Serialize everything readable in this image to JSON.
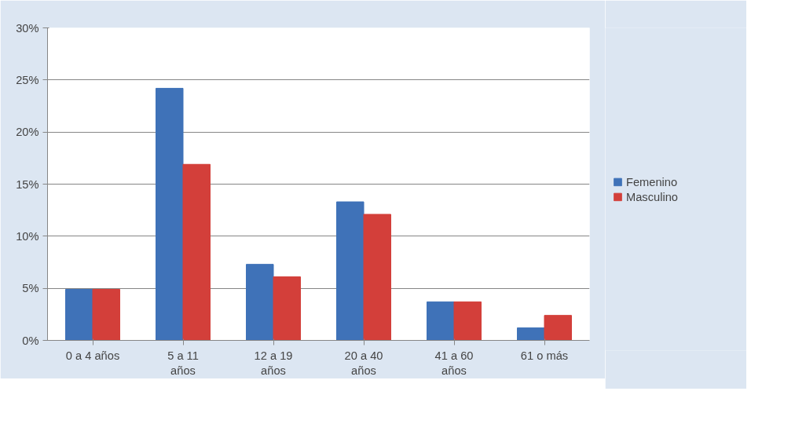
{
  "chart_data": {
    "type": "bar",
    "categories": [
      "0 a 4 años",
      "5 a 11 años",
      "12 a 19 años",
      "20 a 40 años",
      "41 a 60 años",
      "61 o más"
    ],
    "series": [
      {
        "name": "Femenino",
        "color": "#3f72b8",
        "values": [
          4.9,
          24.2,
          7.3,
          13.3,
          3.7,
          1.2
        ]
      },
      {
        "name": "Masculino",
        "color": "#d33f3a",
        "values": [
          4.9,
          16.9,
          6.1,
          12.1,
          3.7,
          2.4
        ]
      }
    ],
    "ylim": [
      0,
      30
    ],
    "yticks": [
      {
        "value": 0,
        "label": "0%"
      },
      {
        "value": 5,
        "label": "5%"
      },
      {
        "value": 10,
        "label": "10%"
      },
      {
        "value": 15,
        "label": "15%"
      },
      {
        "value": 20,
        "label": "20%"
      },
      {
        "value": 25,
        "label": "25%"
      },
      {
        "value": 30,
        "label": "30%"
      }
    ],
    "grid": "y",
    "legend": "right"
  }
}
